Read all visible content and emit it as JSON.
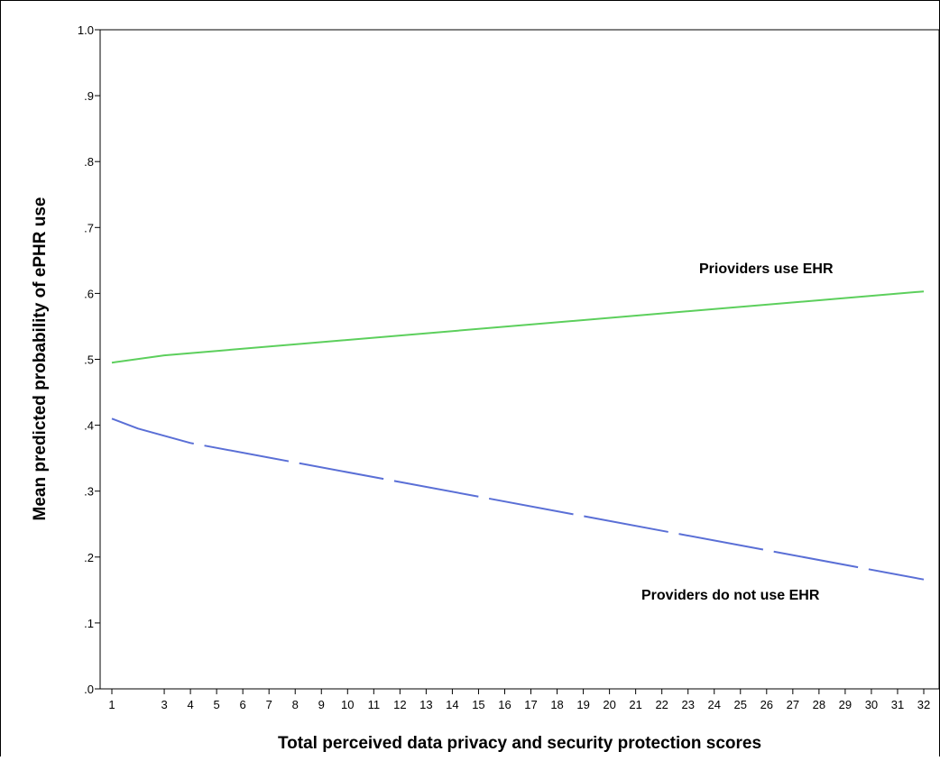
{
  "chart_data": {
    "type": "line",
    "xlabel": "Total perceived data privacy and security protection scores",
    "ylabel": "Mean predicted probability of ePHR use",
    "x": [
      1,
      3,
      4,
      5,
      6,
      7,
      8,
      9,
      10,
      11,
      12,
      13,
      14,
      15,
      16,
      17,
      18,
      19,
      20,
      21,
      22,
      23,
      24,
      25,
      26,
      27,
      28,
      29,
      30,
      31,
      32
    ],
    "xlim": [
      1,
      32
    ],
    "ylim": [
      0,
      1
    ],
    "y_ticks": [
      0,
      0.1,
      0.2,
      0.3,
      0.4,
      0.5,
      0.6,
      0.7,
      0.8,
      0.9,
      1.0
    ],
    "y_tick_labels": [
      ".0",
      ".1",
      ".2",
      ".3",
      ".4",
      ".5",
      ".6",
      ".7",
      ".8",
      ".9",
      "1.0"
    ],
    "grid": false,
    "series": [
      {
        "name": "Prioviders use EHR",
        "color": "#5ccf5c",
        "style": "solid",
        "points": [
          [
            1,
            0.495
          ],
          [
            3,
            0.506
          ],
          [
            32,
            0.603
          ]
        ]
      },
      {
        "name": "Providers do not use EHR",
        "color": "#5a6fd6",
        "style": "long-dash",
        "points": [
          [
            1,
            0.41
          ],
          [
            2,
            0.395
          ],
          [
            4,
            0.373
          ],
          [
            32,
            0.166
          ]
        ]
      }
    ],
    "annotations": [
      "Prioviders use EHR",
      "Providers do not use EHR"
    ]
  }
}
